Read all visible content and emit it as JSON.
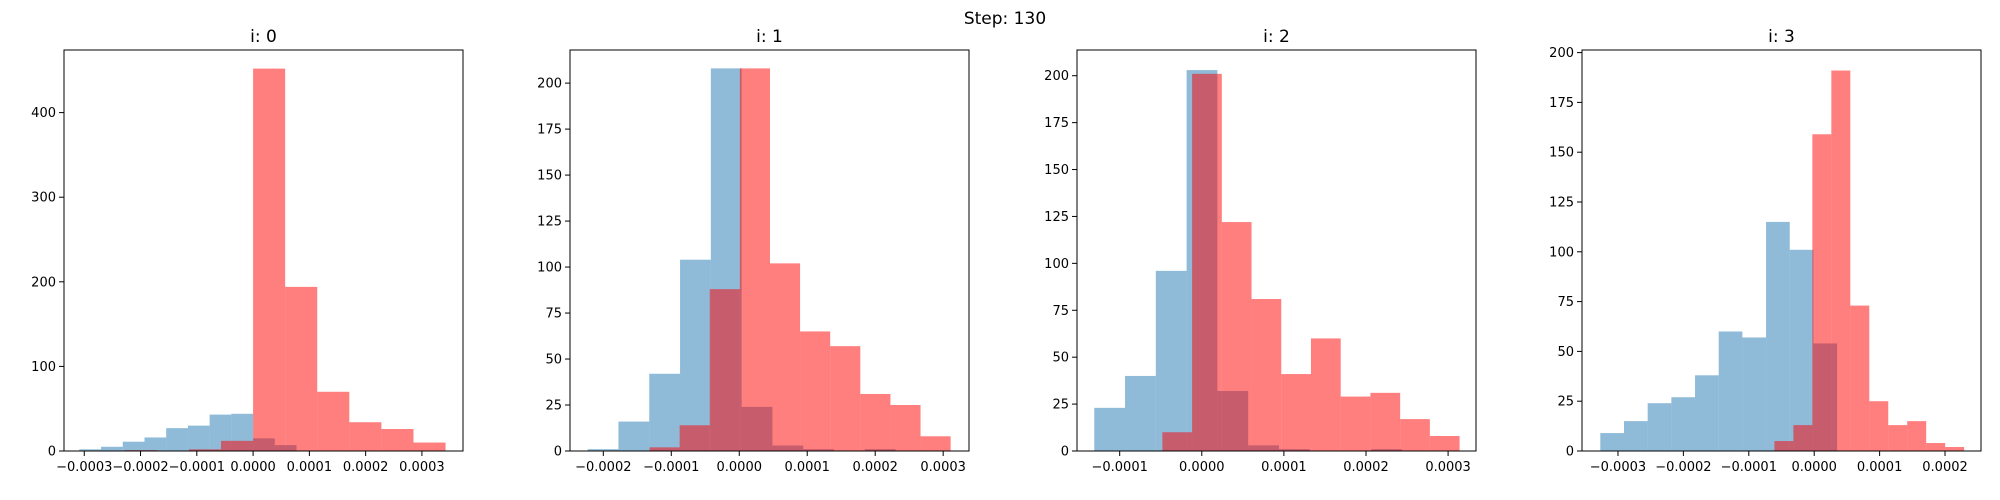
{
  "title": "Step: 130",
  "chart_data": [
    {
      "type": "histogram",
      "title": "i: 0",
      "alpha": 0.5,
      "xlim": [
        -0.000336,
        0.000373
      ],
      "ylim": [
        0,
        474
      ],
      "xticks": [
        {
          "value": -0.0003,
          "label": "−0.0003"
        },
        {
          "value": -0.0002,
          "label": "−0.0002"
        },
        {
          "value": -0.0001,
          "label": "−0.0001"
        },
        {
          "value": 0,
          "label": "0.0000"
        },
        {
          "value": 0.0001,
          "label": "0.0001"
        },
        {
          "value": 0.0002,
          "label": "0.0002"
        },
        {
          "value": 0.0003,
          "label": "0.0003"
        }
      ],
      "yticks": [
        0,
        100,
        200,
        300,
        400
      ],
      "series": [
        {
          "color": "#1f77b4",
          "bins": [
            -0.0003088,
            -0.0002702,
            -0.0002316,
            -0.000193,
            -0.0001544,
            -0.0001158,
            -7.72e-05,
            -3.86e-05,
            0,
            3.86e-05,
            7.72e-05
          ],
          "values": [
            2,
            5,
            11,
            16,
            27,
            30,
            43,
            44,
            15,
            7
          ]
        },
        {
          "color": "#ff0000",
          "bins": [
            -0.000228,
            -0.000171,
            -0.000114,
            -5.7e-05,
            0,
            5.7e-05,
            0.000114,
            0.000171,
            0.000228,
            0.000285,
            0.000342
          ],
          "values": [
            1,
            0,
            2,
            12,
            452,
            194,
            70,
            34,
            26,
            10
          ]
        }
      ]
    },
    {
      "type": "histogram",
      "title": "i: 1",
      "alpha": 0.5,
      "xlim": [
        -0.000249,
        0.000338
      ],
      "ylim": [
        0,
        218
      ],
      "xticks": [
        {
          "value": -0.0002,
          "label": "−0.0002"
        },
        {
          "value": -0.0001,
          "label": "−0.0001"
        },
        {
          "value": 0,
          "label": "0.0000"
        },
        {
          "value": 0.0001,
          "label": "0.0001"
        },
        {
          "value": 0.0002,
          "label": "0.0002"
        },
        {
          "value": 0.0003,
          "label": "0.0003"
        }
      ],
      "yticks": [
        0,
        25,
        50,
        75,
        100,
        125,
        150,
        175,
        200
      ],
      "series": [
        {
          "color": "#1f77b4",
          "bins": [
            -0.000223,
            -0.0001777,
            -0.0001324,
            -8.71e-05,
            -4.18e-05,
            3.5e-06,
            4.88e-05,
            9.41e-05,
            0.0001394,
            0.0001847,
            0.00023
          ],
          "values": [
            1,
            16,
            42,
            104,
            208,
            24,
            3,
            1,
            0,
            1
          ]
        },
        {
          "color": "#ff0000",
          "bins": [
            -0.000132,
            -8.77e-05,
            -4.34e-05,
            9e-07,
            4.52e-05,
            8.95e-05,
            0.0001338,
            0.0001781,
            0.0002224,
            0.0002667,
            0.000311
          ],
          "values": [
            2,
            14,
            88,
            208,
            102,
            65,
            57,
            31,
            25,
            8
          ]
        }
      ]
    },
    {
      "type": "histogram",
      "title": "i: 2",
      "alpha": 0.5,
      "xlim": [
        -0.000152,
        0.000334
      ],
      "ylim": [
        0,
        213.7
      ],
      "xticks": [
        {
          "value": -0.0001,
          "label": "−0.0001"
        },
        {
          "value": 0,
          "label": "0.0000"
        },
        {
          "value": 0.0001,
          "label": "0.0001"
        },
        {
          "value": 0.0002,
          "label": "0.0002"
        },
        {
          "value": 0.0003,
          "label": "0.0003"
        }
      ],
      "yticks": [
        0,
        25,
        50,
        75,
        100,
        125,
        150,
        175,
        200
      ],
      "series": [
        {
          "color": "#1f77b4",
          "bins": [
            -0.000131,
            -9.35e-05,
            -5.6e-05,
            -1.85e-05,
            1.9e-05,
            5.65e-05,
            9.4e-05,
            0.0001315,
            0.000169,
            0.0002065,
            0.000244
          ],
          "values": [
            23,
            40,
            96,
            203,
            32,
            3,
            1,
            0,
            0,
            1
          ]
        },
        {
          "color": "#ff0000",
          "bins": [
            -4.8e-05,
            -1.18e-05,
            2.44e-05,
            6.06e-05,
            9.68e-05,
            0.000133,
            0.0001692,
            0.0002054,
            0.0002416,
            0.0002778,
            0.000314
          ],
          "values": [
            10,
            201,
            122,
            81,
            41,
            60,
            29,
            31,
            17,
            8
          ]
        }
      ]
    },
    {
      "type": "histogram",
      "title": "i: 3",
      "alpha": 0.5,
      "xlim": [
        -0.000355,
        0.000255
      ],
      "ylim": [
        0,
        201.3
      ],
      "xticks": [
        {
          "value": -0.0003,
          "label": "−0.0003"
        },
        {
          "value": -0.0002,
          "label": "−0.0002"
        },
        {
          "value": -0.0001,
          "label": "−0.0001"
        },
        {
          "value": 0,
          "label": "0.0000"
        },
        {
          "value": 0.0001,
          "label": "0.0001"
        },
        {
          "value": 0.0002,
          "label": "0.0002"
        }
      ],
      "yticks": [
        0,
        25,
        50,
        75,
        100,
        125,
        150,
        175,
        200
      ],
      "series": [
        {
          "color": "#1f77b4",
          "bins": [
            -0.000327,
            -0.0002908,
            -0.0002546,
            -0.0002184,
            -0.0001822,
            -0.000146,
            -0.0001098,
            -7.36e-05,
            -3.74e-05,
            -1.2e-06,
            3.5e-05
          ],
          "values": [
            9,
            15,
            24,
            27,
            38,
            60,
            57,
            115,
            101,
            54
          ]
        },
        {
          "color": "#ff0000",
          "bins": [
            -6.08e-05,
            -3.18e-05,
            -2.8e-06,
            2.62e-05,
            5.52e-05,
            8.42e-05,
            0.0001132,
            0.0001422,
            0.0001712,
            0.0002002,
            0.0002292
          ],
          "values": [
            5,
            13,
            159,
            191,
            73,
            25,
            13,
            15,
            4,
            2
          ]
        }
      ]
    }
  ]
}
